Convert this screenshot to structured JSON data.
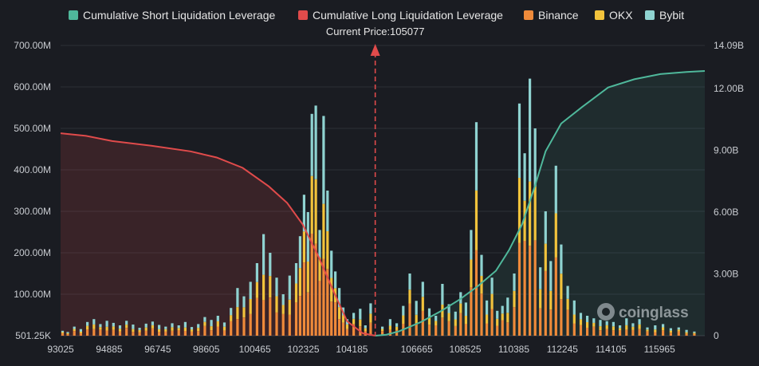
{
  "chart_data": {
    "type": "bar",
    "current_price_label": "Current Price:105077",
    "current_price": 105077,
    "legend": [
      {
        "label": "Cumulative Short Liquidation Leverage",
        "color": "#4fb89b"
      },
      {
        "label": "Cumulative Long Liquidation Leverage",
        "color": "#e04b4b"
      },
      {
        "label": "Binance",
        "color": "#ef8a3a"
      },
      {
        "label": "OKX",
        "color": "#f2c33c"
      },
      {
        "label": "Bybit",
        "color": "#8fd3d1"
      }
    ],
    "left_ticks": [
      "501.25K",
      "100.00M",
      "200.00M",
      "300.00M",
      "400.00M",
      "500.00M",
      "600.00M",
      "700.00M"
    ],
    "right_ticks": [
      "0",
      "3.00B",
      "6.00B",
      "9.00B",
      "12.00B",
      "14.09B"
    ],
    "x_ticks": [
      "93025",
      "94885",
      "96745",
      "98605",
      "100465",
      "102325",
      "104185",
      "106665",
      "108525",
      "110385",
      "112245",
      "114105",
      "115965"
    ],
    "xlim": [
      93025,
      117700
    ],
    "ylim_left_millions": [
      0,
      700
    ],
    "ylim_right_billions": [
      0,
      14.09
    ],
    "cumulative_long_billions": [
      [
        93025,
        9.83
      ],
      [
        94000,
        9.7
      ],
      [
        95000,
        9.45
      ],
      [
        96500,
        9.22
      ],
      [
        98000,
        8.95
      ],
      [
        99000,
        8.65
      ],
      [
        100000,
        8.15
      ],
      [
        101000,
        7.25
      ],
      [
        101700,
        6.45
      ],
      [
        102300,
        5.4
      ],
      [
        102900,
        3.85
      ],
      [
        103500,
        2.1
      ],
      [
        104000,
        0.7
      ],
      [
        104600,
        0.12
      ],
      [
        105077,
        0
      ]
    ],
    "cumulative_short_billions": [
      [
        105077,
        0
      ],
      [
        105500,
        0.05
      ],
      [
        106000,
        0.22
      ],
      [
        106800,
        0.65
      ],
      [
        107600,
        1.2
      ],
      [
        108300,
        1.75
      ],
      [
        109000,
        2.4
      ],
      [
        109700,
        3.15
      ],
      [
        110200,
        4.15
      ],
      [
        110700,
        5.4
      ],
      [
        111200,
        7.3
      ],
      [
        111600,
        8.95
      ],
      [
        112200,
        10.3
      ],
      [
        113000,
        11.1
      ],
      [
        114000,
        12.05
      ],
      [
        115000,
        12.45
      ],
      [
        116000,
        12.7
      ],
      [
        117000,
        12.8
      ],
      [
        117700,
        12.85
      ]
    ],
    "bars_millions": [
      [
        93100,
        12
      ],
      [
        93300,
        9
      ],
      [
        93550,
        22
      ],
      [
        93800,
        16
      ],
      [
        94050,
        33
      ],
      [
        94300,
        40
      ],
      [
        94550,
        28
      ],
      [
        94800,
        36
      ],
      [
        95050,
        31
      ],
      [
        95300,
        25
      ],
      [
        95550,
        36
      ],
      [
        95800,
        27
      ],
      [
        96050,
        19
      ],
      [
        96300,
        29
      ],
      [
        96550,
        34
      ],
      [
        96800,
        26
      ],
      [
        97050,
        22
      ],
      [
        97300,
        30
      ],
      [
        97550,
        25
      ],
      [
        97800,
        33
      ],
      [
        98050,
        21
      ],
      [
        98300,
        28
      ],
      [
        98550,
        45
      ],
      [
        98800,
        38
      ],
      [
        99050,
        48
      ],
      [
        99300,
        32
      ],
      [
        99550,
        67
      ],
      [
        99800,
        115
      ],
      [
        100050,
        95
      ],
      [
        100300,
        130
      ],
      [
        100550,
        175
      ],
      [
        100800,
        245
      ],
      [
        101050,
        200
      ],
      [
        101300,
        140
      ],
      [
        101550,
        100
      ],
      [
        101800,
        145
      ],
      [
        102050,
        175
      ],
      [
        102200,
        240
      ],
      [
        102350,
        340
      ],
      [
        102500,
        298
      ],
      [
        102650,
        535
      ],
      [
        102800,
        555
      ],
      [
        102950,
        255
      ],
      [
        103100,
        530
      ],
      [
        103250,
        350
      ],
      [
        103400,
        205
      ],
      [
        103550,
        155
      ],
      [
        103700,
        115
      ],
      [
        103850,
        68
      ],
      [
        104000,
        40
      ],
      [
        104250,
        55
      ],
      [
        104500,
        65
      ],
      [
        104700,
        25
      ],
      [
        104900,
        78
      ],
      [
        105350,
        22
      ],
      [
        105650,
        40
      ],
      [
        105900,
        30
      ],
      [
        106150,
        72
      ],
      [
        106400,
        150
      ],
      [
        106650,
        84
      ],
      [
        106900,
        130
      ],
      [
        107150,
        66
      ],
      [
        107400,
        48
      ],
      [
        107650,
        125
      ],
      [
        107900,
        76
      ],
      [
        108150,
        58
      ],
      [
        108350,
        105
      ],
      [
        108550,
        80
      ],
      [
        108750,
        255
      ],
      [
        108950,
        515
      ],
      [
        109150,
        195
      ],
      [
        109350,
        85
      ],
      [
        109550,
        140
      ],
      [
        109750,
        60
      ],
      [
        109950,
        72
      ],
      [
        110150,
        92
      ],
      [
        110400,
        150
      ],
      [
        110600,
        560
      ],
      [
        110800,
        440
      ],
      [
        111000,
        620
      ],
      [
        111200,
        500
      ],
      [
        111400,
        165
      ],
      [
        111600,
        300
      ],
      [
        111800,
        180
      ],
      [
        112000,
        410
      ],
      [
        112200,
        220
      ],
      [
        112450,
        120
      ],
      [
        112700,
        85
      ],
      [
        112950,
        55
      ],
      [
        113200,
        48
      ],
      [
        113450,
        42
      ],
      [
        113700,
        38
      ],
      [
        113950,
        35
      ],
      [
        114200,
        33
      ],
      [
        114450,
        25
      ],
      [
        114700,
        42
      ],
      [
        114950,
        30
      ],
      [
        115200,
        40
      ],
      [
        115500,
        20
      ],
      [
        115800,
        25
      ],
      [
        116100,
        28
      ],
      [
        116400,
        18
      ],
      [
        116700,
        20
      ],
      [
        117000,
        14
      ],
      [
        117300,
        10
      ]
    ]
  }
}
